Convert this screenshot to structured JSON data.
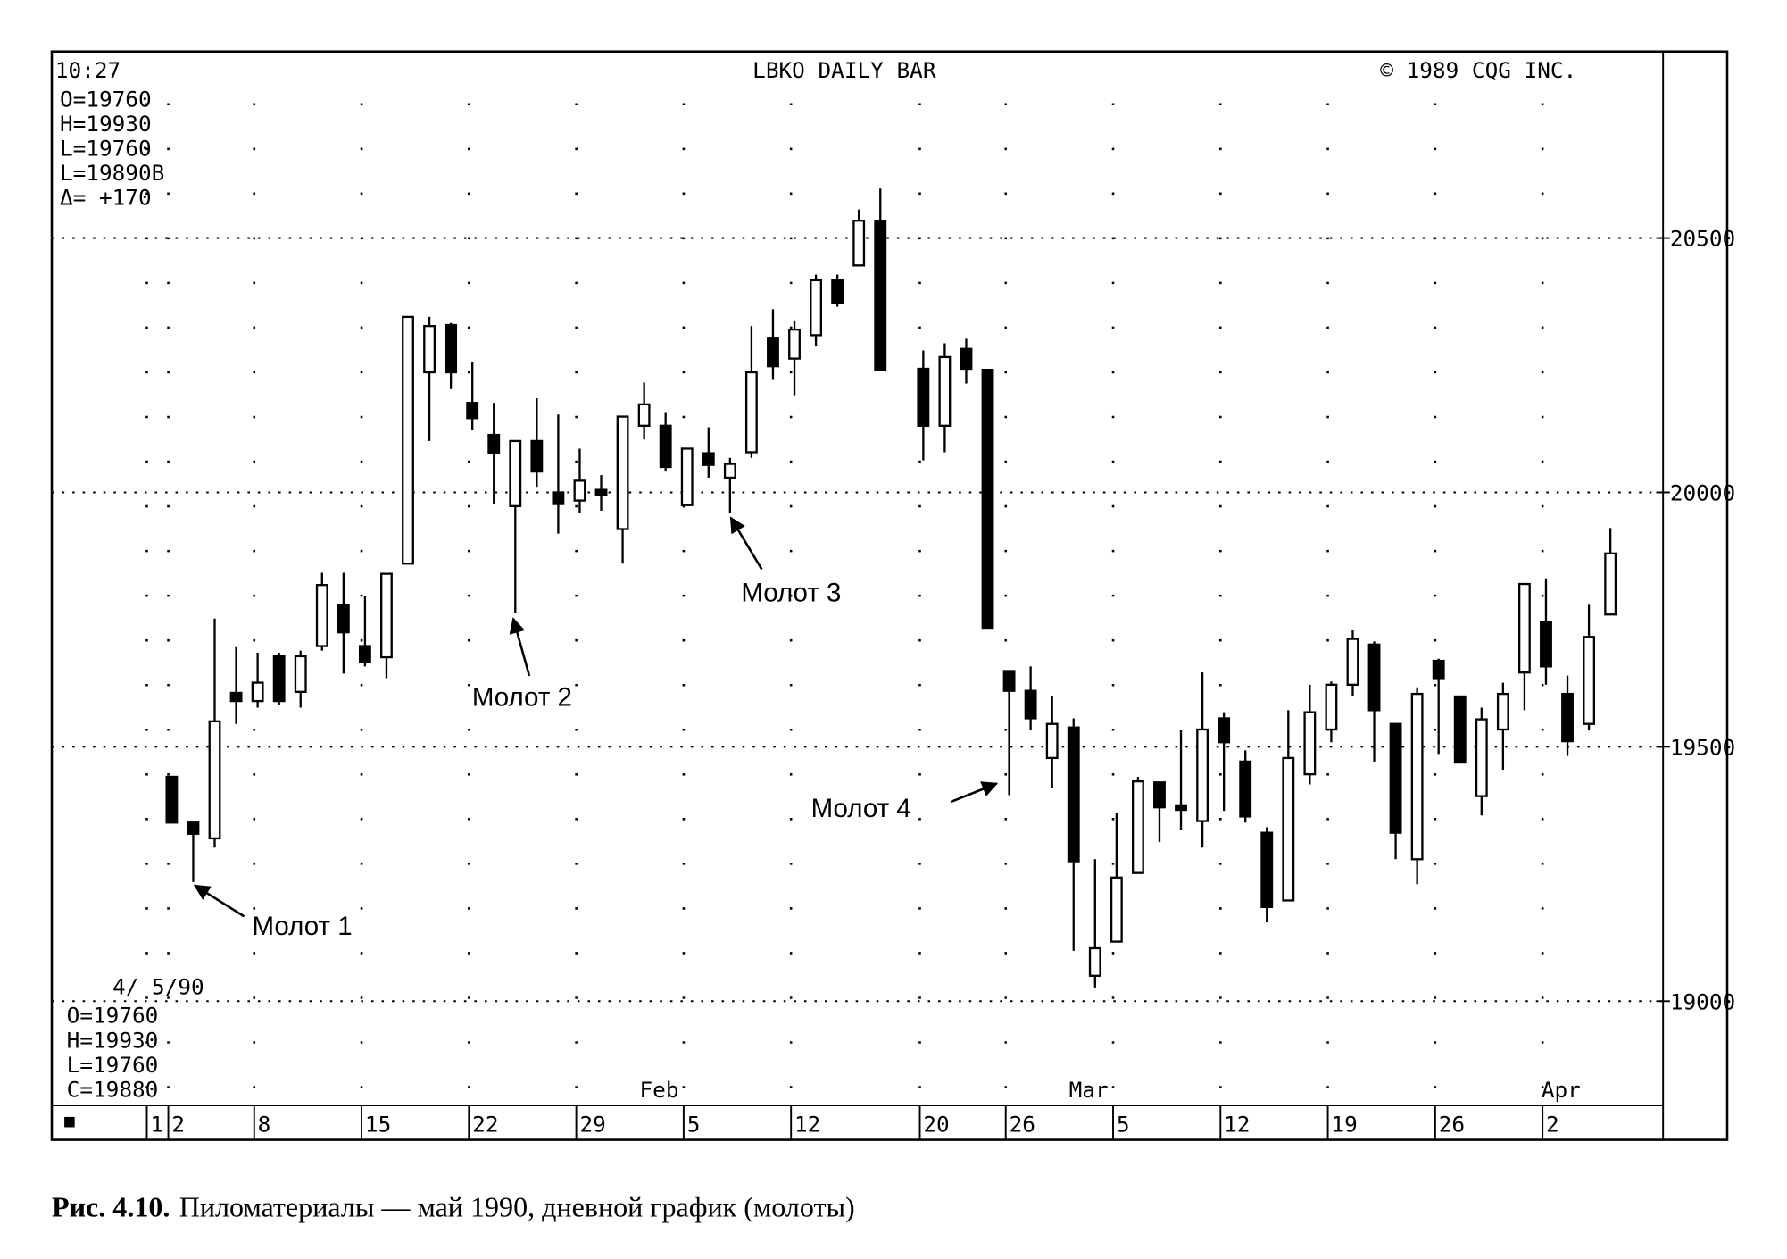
{
  "chart_data": {
    "type": "candlestick",
    "time": "10:27",
    "title": "LBKO DAILY BAR",
    "copyright": "© 1989 CQG INC.",
    "info_top": [
      "O=19760",
      "H=19930",
      "L=19760",
      "L=19890B",
      "Δ= +170"
    ],
    "info_bottom_date": "4/ 5/90",
    "info_bottom": [
      "O=19760",
      "H=19930",
      "L=19760",
      "C=19880"
    ],
    "categories": [
      "1",
      "2",
      null,
      null,
      null,
      "8",
      null,
      null,
      null,
      null,
      "15",
      null,
      null,
      null,
      null,
      "22",
      null,
      null,
      null,
      null,
      "29",
      null,
      null,
      null,
      null,
      "5",
      null,
      null,
      null,
      null,
      "12",
      null,
      null,
      null,
      null,
      null,
      "20",
      null,
      null,
      null,
      "26",
      null,
      null,
      null,
      null,
      "5",
      null,
      null,
      null,
      null,
      "12",
      null,
      null,
      null,
      null,
      "19",
      null,
      null,
      null,
      null,
      "26",
      null,
      null,
      null,
      null,
      "2",
      null,
      null,
      null
    ],
    "months": [
      null,
      null,
      null,
      null,
      null,
      null,
      null,
      null,
      null,
      null,
      null,
      null,
      null,
      null,
      null,
      null,
      null,
      null,
      null,
      null,
      null,
      null,
      null,
      "Feb",
      null,
      null,
      null,
      null,
      null,
      null,
      null,
      null,
      null,
      null,
      null,
      null,
      null,
      null,
      null,
      null,
      null,
      null,
      null,
      "Mar",
      null,
      null,
      null,
      null,
      null,
      null,
      null,
      null,
      null,
      null,
      null,
      null,
      null,
      null,
      null,
      null,
      null,
      null,
      null,
      null,
      null,
      "Apr",
      null,
      null,
      null
    ],
    "open": [
      null,
      19441,
      19351,
      19320,
      19606,
      19590,
      19678,
      19608,
      19698,
      19779,
      19698,
      19676,
      19860,
      20236,
      20329,
      20176,
      20113,
      19973,
      20101,
      20000,
      19984,
      20005,
      19928,
      20131,
      20131,
      19975,
      20077,
      20029,
      20079,
      20304,
      20263,
      20309,
      20417,
      20446,
      20534,
      null,
      20243,
      20131,
      20282,
      20241,
      19649,
      19610,
      19478,
      19538,
      19050,
      19117,
      19252,
      19430,
      19385,
      19354,
      19556,
      19471,
      19331,
      19198,
      19446,
      19534,
      19622,
      19701,
      19545,
      19279,
      19669,
      19599,
      19403,
      19534,
      19646,
      19746,
      19604,
      19545,
      19760
    ],
    "high": [
      null,
      19441,
      19351,
      19752,
      19696,
      19685,
      19685,
      19689,
      19842,
      19842,
      19797,
      19840,
      20345,
      20345,
      20333,
      20257,
      20176,
      20101,
      20185,
      20153,
      20086,
      20034,
      20149,
      20216,
      20158,
      20086,
      20128,
      20068,
      20327,
      20360,
      20338,
      20428,
      20428,
      20556,
      20597,
      null,
      20279,
      20293,
      20302,
      20241,
      19649,
      19658,
      19599,
      19556,
      19279,
      19369,
      19441,
      19430,
      19534,
      19646,
      19568,
      19493,
      19342,
      19572,
      19622,
      19628,
      19730,
      19707,
      19545,
      19617,
      19673,
      19599,
      19577,
      19626,
      19820,
      19831,
      19640,
      19779,
      19930
    ],
    "low": [
      null,
      19351,
      19234,
      19302,
      19545,
      19577,
      19583,
      19577,
      19689,
      19644,
      19658,
      19635,
      19860,
      20101,
      20203,
      20122,
      19977,
      19764,
      20011,
      19919,
      19959,
      19964,
      19860,
      20104,
      20041,
      19975,
      20029,
      19959,
      20068,
      20221,
      20191,
      20288,
      20365,
      20446,
      20241,
      null,
      20063,
      20079,
      20214,
      19734,
      19405,
      19534,
      19419,
      19099,
      19027,
      19117,
      19252,
      19313,
      19336,
      19302,
      19374,
      19351,
      19155,
      19198,
      19426,
      19509,
      19599,
      19471,
      19279,
      19230,
      19486,
      19469,
      19365,
      19455,
      19572,
      19622,
      19482,
      19532,
      19760
    ],
    "close": [
      null,
      19351,
      19329,
      19550,
      19590,
      19626,
      19590,
      19678,
      19818,
      19725,
      19667,
      19840,
      20345,
      20327,
      20236,
      20146,
      20077,
      20101,
      20041,
      19977,
      20023,
      19995,
      20149,
      20173,
      20050,
      20086,
      20054,
      20056,
      20236,
      20248,
      20320,
      20417,
      20372,
      20534,
      20241,
      null,
      20131,
      20266,
      20243,
      19734,
      19610,
      19556,
      19545,
      19275,
      19104,
      19243,
      19432,
      19381,
      19376,
      19534,
      19509,
      19363,
      19185,
      19478,
      19568,
      19622,
      19712,
      19572,
      19331,
      19604,
      19635,
      19469,
      19554,
      19604,
      19820,
      19658,
      19511,
      19716,
      19880
    ],
    "ylim": [
      18795,
      20862
    ],
    "yticks": [
      19000,
      19500,
      20000,
      20500
    ],
    "grid": true,
    "color": "#000000",
    "annotations": [
      "Молот 1",
      "Молот 2",
      "Молот 3",
      "Молот 4"
    ]
  },
  "caption": {
    "label": "Рис. 4.10.",
    "text": "Пиломатериалы — май 1990, дневной график (молоты)"
  }
}
